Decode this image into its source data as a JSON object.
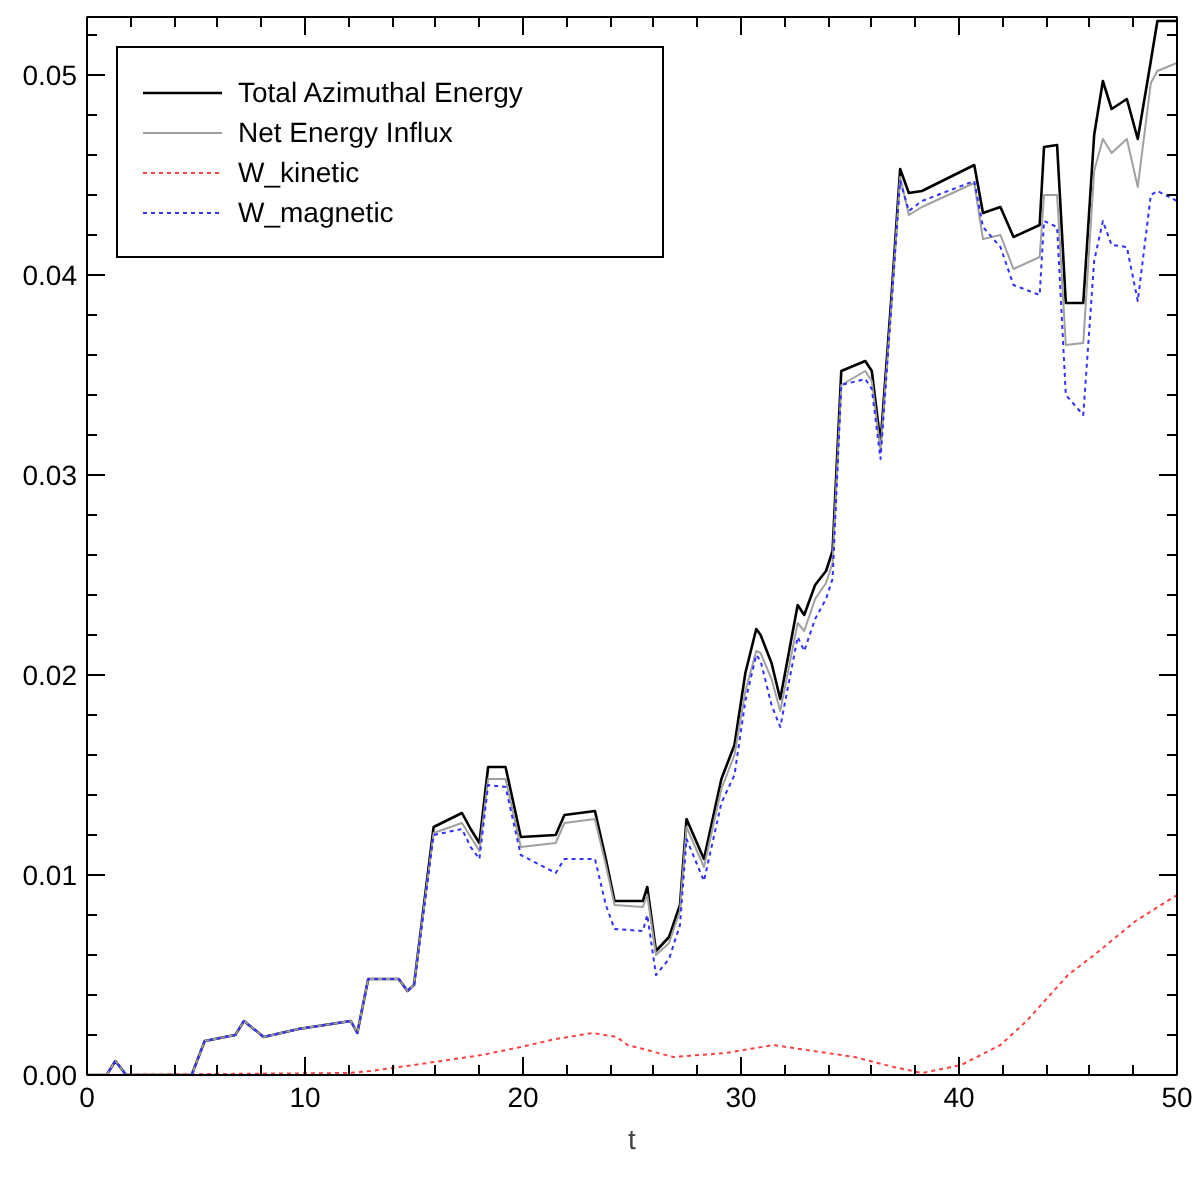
{
  "chart_data": {
    "type": "line",
    "xlabel": "t",
    "xlim": [
      0,
      50
    ],
    "ylim": [
      0,
      0.0529
    ],
    "xticks": [
      0,
      10,
      20,
      30,
      40,
      50
    ],
    "yticks": [
      {
        "value": 0,
        "label": "0.00"
      },
      {
        "value": 0.01,
        "label": "0.01"
      },
      {
        "value": 0.02,
        "label": "0.02"
      },
      {
        "value": 0.03,
        "label": "0.03"
      },
      {
        "value": 0.04,
        "label": "0.04"
      },
      {
        "value": 0.05,
        "label": "0.05"
      }
    ],
    "grid": false,
    "legend": "top left",
    "marker": "none",
    "x": [
      0,
      0.9,
      1.3,
      1.8,
      4.8,
      5.4,
      6.8,
      7.2,
      8.1,
      9.7,
      12.1,
      12.4,
      12.9,
      14.3,
      14.7,
      15.0,
      15.9,
      17.2,
      17.6,
      18.0,
      18.4,
      19.2,
      19.9,
      21.5,
      21.9,
      23.3,
      23.8,
      24.2,
      25.5,
      25.7,
      26.1,
      26.7,
      27.2,
      27.5,
      28.3,
      29.1,
      29.7,
      30.2,
      30.7,
      30.9,
      31.4,
      31.8,
      32.6,
      32.9,
      33.4,
      33.9,
      34.2,
      34.6,
      35.7,
      36.0,
      36.4,
      36.9,
      37.3,
      37.7,
      38.3,
      40.7,
      41.1,
      41.9,
      42.5,
      43.7,
      43.9,
      44.5,
      44.9,
      45.7,
      46.2,
      46.6,
      47.0,
      47.7,
      48.2,
      48.8,
      49.1,
      50
    ],
    "series": [
      {
        "name": "Total Azimuthal Energy",
        "color": "#000000",
        "line_style": "solid",
        "values": [
          0,
          0,
          0.0007,
          0,
          0,
          0.0017,
          0.002,
          0.0027,
          0.0019,
          0.0023,
          0.0027,
          0.0021,
          0.0048,
          0.0048,
          0.0042,
          0.0045,
          0.0124,
          0.0131,
          0.0123,
          0.0116,
          0.0154,
          0.0154,
          0.0119,
          0.012,
          0.013,
          0.0132,
          0.0108,
          0.0087,
          0.0087,
          0.0094,
          0.0062,
          0.0069,
          0.0085,
          0.0128,
          0.0108,
          0.0148,
          0.0165,
          0.0201,
          0.0223,
          0.022,
          0.0206,
          0.0188,
          0.0235,
          0.023,
          0.0245,
          0.0252,
          0.0262,
          0.0352,
          0.0357,
          0.0352,
          0.0316,
          0.0389,
          0.0453,
          0.0441,
          0.0442,
          0.0455,
          0.0431,
          0.0434,
          0.0419,
          0.0425,
          0.0464,
          0.0465,
          0.0386,
          0.0386,
          0.047,
          0.0497,
          0.0483,
          0.0488,
          0.0468,
          0.0507,
          0.0527,
          0.0527
        ]
      },
      {
        "name": "Net Energy Influx",
        "color": "#a0a0a0",
        "line_style": "solid",
        "values": [
          0,
          0,
          0.0007,
          0,
          0,
          0.0017,
          0.002,
          0.0027,
          0.0019,
          0.0023,
          0.0027,
          0.0021,
          0.0048,
          0.0048,
          0.0042,
          0.0045,
          0.0121,
          0.0126,
          0.0119,
          0.0112,
          0.0148,
          0.0148,
          0.0114,
          0.0116,
          0.0126,
          0.0128,
          0.0105,
          0.0085,
          0.0084,
          0.009,
          0.006,
          0.0066,
          0.0082,
          0.0124,
          0.0104,
          0.0143,
          0.016,
          0.0192,
          0.0212,
          0.0211,
          0.0198,
          0.0182,
          0.0226,
          0.0222,
          0.0238,
          0.0246,
          0.0256,
          0.0345,
          0.0352,
          0.0347,
          0.0312,
          0.0385,
          0.0449,
          0.043,
          0.0434,
          0.0446,
          0.0418,
          0.042,
          0.0403,
          0.0409,
          0.044,
          0.044,
          0.0365,
          0.0366,
          0.0452,
          0.0468,
          0.0461,
          0.0468,
          0.0444,
          0.0496,
          0.0502,
          0.0506
        ]
      },
      {
        "name": "W_kinetic",
        "color": "#ff4040",
        "line_style": "dotted",
        "x": [
          0,
          12,
          13,
          15,
          18.1,
          19.9,
          21.5,
          23.2,
          24.3,
          24.8,
          26.9,
          28.1,
          29.3,
          31.5,
          32.7,
          35.2,
          37.0,
          38.3,
          40.1,
          41.9,
          43.1,
          45.0,
          46.2,
          48.1,
          50
        ],
        "values": [
          0,
          0.0001,
          0.0002,
          0.0005,
          0.001,
          0.0014,
          0.0018,
          0.0021,
          0.0019,
          0.0015,
          0.0009,
          0.001,
          0.0011,
          0.0015,
          0.0013,
          0.0009,
          0.0004,
          0.0001,
          0.0005,
          0.0015,
          0.0027,
          0.005,
          0.006,
          0.0077,
          0.009
        ]
      },
      {
        "name": "W_magnetic",
        "color": "#3030ff",
        "line_style": "dotted",
        "values": [
          0,
          0,
          0.0007,
          0,
          0,
          0.0017,
          0.002,
          0.0027,
          0.0019,
          0.0023,
          0.0027,
          0.0021,
          0.0048,
          0.0048,
          0.0042,
          0.0045,
          0.012,
          0.0123,
          0.0114,
          0.0108,
          0.0145,
          0.0144,
          0.011,
          0.0101,
          0.0108,
          0.0108,
          0.0085,
          0.0073,
          0.0072,
          0.008,
          0.005,
          0.0058,
          0.0075,
          0.0118,
          0.0097,
          0.0136,
          0.015,
          0.0187,
          0.021,
          0.0207,
          0.0185,
          0.0174,
          0.0219,
          0.0212,
          0.0228,
          0.0238,
          0.0248,
          0.0345,
          0.0348,
          0.0343,
          0.0308,
          0.0385,
          0.0447,
          0.0432,
          0.0437,
          0.0447,
          0.0424,
          0.0414,
          0.0395,
          0.039,
          0.0427,
          0.0424,
          0.034,
          0.033,
          0.0407,
          0.0427,
          0.0415,
          0.0414,
          0.0387,
          0.044,
          0.0442,
          0.0437
        ]
      }
    ]
  }
}
